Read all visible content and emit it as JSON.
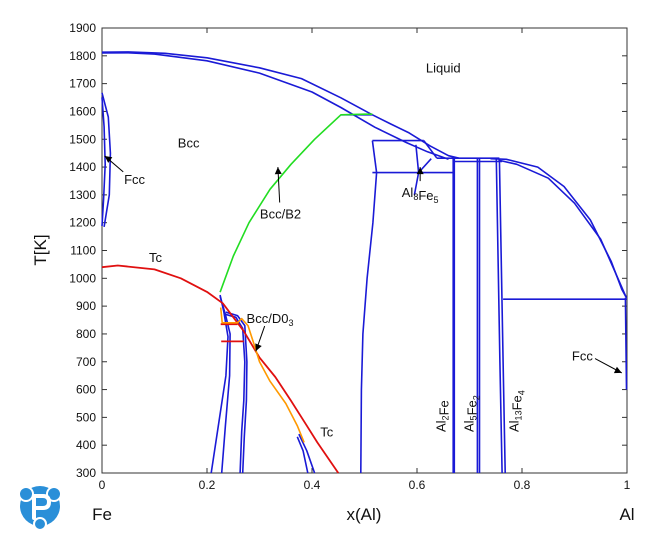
{
  "chart_data": {
    "type": "line",
    "title": "",
    "xlabel": "x(Al)",
    "ylabel": "T[K]",
    "xlim": [
      0,
      1
    ],
    "ylim": [
      300,
      1900
    ],
    "xticks": [
      "0",
      "0.2",
      "0.4",
      "0.6",
      "0.8",
      "1"
    ],
    "yticks": [
      "300",
      "400",
      "500",
      "600",
      "700",
      "800",
      "900",
      "1000",
      "1100",
      "1200",
      "1300",
      "1400",
      "1500",
      "1600",
      "1700",
      "1800",
      "1900"
    ],
    "end_labels": {
      "left": "Fe",
      "right": "Al"
    },
    "colors": {
      "phase_boundary": "#1a1ad6",
      "tc": "#e01010",
      "bcc_b2": "#22dd22",
      "bcc_d03": "#ff9900"
    },
    "annotations": [
      {
        "text": "Liquid",
        "x": 0.65,
        "y": 1740
      },
      {
        "text": "Bcc",
        "x": 0.165,
        "y": 1470
      },
      {
        "text": "Fcc",
        "x": 0.062,
        "y": 1340,
        "arrow_to": [
          0.005,
          1440
        ]
      },
      {
        "text": "Bcc/B2",
        "x": 0.34,
        "y": 1215,
        "arrow_to": [
          0.335,
          1400
        ]
      },
      {
        "text": "Tc",
        "x": 0.102,
        "y": 1058
      },
      {
        "text": "Bcc/D0",
        "sub": "3",
        "x": 0.32,
        "y": 840,
        "arrow_to": [
          0.293,
          738
        ]
      },
      {
        "text": "Tc",
        "x": 0.428,
        "y": 432
      },
      {
        "text": "Al",
        "sub": "8",
        "text2": "Fe",
        "sub2": "5",
        "x": 0.606,
        "y": 1292,
        "arrow_to": [
          0.606,
          1400
        ]
      },
      {
        "text": "Fcc",
        "x": 0.915,
        "y": 705,
        "arrow_to": [
          0.99,
          660
        ]
      }
    ],
    "vertical_labels": [
      {
        "text": "Al",
        "sub": "2",
        "text2": "Fe",
        "x": 0.647
      },
      {
        "text": "Al",
        "sub": "5",
        "text2": "Fe",
        "sub2": "2",
        "x": 0.7
      },
      {
        "text": "Al",
        "sub": "13",
        "text2": "Fe",
        "sub2": "4",
        "x": 0.786
      }
    ],
    "series": [
      {
        "style": "phase_boundary",
        "points": [
          [
            0,
            1810
          ],
          [
            0.05,
            1811
          ],
          [
            0.1,
            1806
          ],
          [
            0.2,
            1782
          ],
          [
            0.3,
            1738
          ],
          [
            0.4,
            1670
          ],
          [
            0.455,
            1614
          ],
          [
            0.52,
            1543
          ],
          [
            0.58,
            1488
          ],
          [
            0.62,
            1455
          ],
          [
            0.66,
            1428
          ]
        ]
      },
      {
        "style": "phase_boundary",
        "points": [
          [
            0,
            1813
          ],
          [
            0.05,
            1814
          ],
          [
            0.12,
            1809
          ],
          [
            0.2,
            1793
          ],
          [
            0.3,
            1757
          ],
          [
            0.38,
            1718
          ],
          [
            0.455,
            1649
          ],
          [
            0.515,
            1588
          ],
          [
            0.55,
            1555
          ],
          [
            0.585,
            1523
          ],
          [
            0.625,
            1476
          ],
          [
            0.66,
            1441
          ],
          [
            0.68,
            1432
          ]
        ]
      },
      {
        "style": "phase_boundary",
        "points": [
          [
            0,
            1667
          ],
          [
            0.012,
            1580
          ],
          [
            0.016,
            1450
          ],
          [
            0.014,
            1300
          ],
          [
            0.004,
            1185
          ]
        ]
      },
      {
        "style": "phase_boundary",
        "points": [
          [
            0,
            1650
          ],
          [
            0.004,
            1545
          ],
          [
            0.006,
            1410
          ],
          [
            0.003,
            1285
          ],
          [
            0,
            1188
          ]
        ]
      },
      {
        "style": "phase_boundary",
        "points": [
          [
            0.515,
            1588
          ],
          [
            0.455,
            1588
          ]
        ]
      },
      {
        "style": "phase_boundary",
        "points": [
          [
            0.515,
            1495
          ],
          [
            0.613,
            1495
          ]
        ]
      },
      {
        "style": "phase_boundary",
        "points": [
          [
            0.515,
            1380
          ],
          [
            0.668,
            1380
          ]
        ]
      },
      {
        "style": "phase_boundary",
        "points": [
          [
            0.515,
            1495
          ],
          [
            0.523,
            1380
          ]
        ]
      },
      {
        "style": "phase_boundary",
        "points": [
          [
            0.613,
            1495
          ],
          [
            0.638,
            1432
          ]
        ]
      },
      {
        "style": "phase_boundary",
        "points": [
          [
            0.638,
            1432
          ],
          [
            0.667,
            1432
          ]
        ]
      },
      {
        "style": "phase_boundary",
        "points": [
          [
            0.598,
            1480
          ],
          [
            0.603,
            1380
          ]
        ]
      },
      {
        "style": "phase_boundary",
        "points": [
          [
            0.603,
            1380
          ],
          [
            0.627,
            1430
          ]
        ]
      },
      {
        "style": "phase_boundary",
        "points": [
          [
            0.603,
            1380
          ],
          [
            0.6,
            1350
          ],
          [
            0.595,
            1300
          ]
        ]
      },
      {
        "style": "phase_boundary",
        "points": [
          [
            0.523,
            1380
          ],
          [
            0.516,
            1200
          ],
          [
            0.505,
            1000
          ],
          [
            0.497,
            800
          ],
          [
            0.494,
            600
          ],
          [
            0.493,
            300
          ]
        ]
      },
      {
        "style": "phase_boundary",
        "points": [
          [
            0.669,
            1435
          ],
          [
            0.669,
            300
          ]
        ]
      },
      {
        "style": "phase_boundary",
        "points": [
          [
            0.671,
            1435
          ],
          [
            0.671,
            300
          ]
        ]
      },
      {
        "style": "phase_boundary",
        "points": [
          [
            0.715,
            1430
          ],
          [
            0.715,
            300
          ]
        ]
      },
      {
        "style": "phase_boundary",
        "points": [
          [
            0.719,
            1430
          ],
          [
            0.719,
            300
          ]
        ]
      },
      {
        "style": "phase_boundary",
        "points": [
          [
            0.671,
            1420
          ],
          [
            0.762,
            1420
          ]
        ]
      },
      {
        "style": "phase_boundary",
        "points": [
          [
            0.665,
            1432
          ],
          [
            0.757,
            1432
          ]
        ]
      },
      {
        "style": "phase_boundary",
        "points": [
          [
            0.751,
            1430
          ],
          [
            0.758,
            700
          ],
          [
            0.762,
            300
          ]
        ]
      },
      {
        "style": "phase_boundary",
        "points": [
          [
            0.757,
            1430
          ],
          [
            0.764,
            700
          ],
          [
            0.768,
            300
          ]
        ]
      },
      {
        "style": "phase_boundary",
        "points": [
          [
            0.74,
            1430
          ],
          [
            0.77,
            1428
          ],
          [
            0.83,
            1400
          ],
          [
            0.88,
            1330
          ],
          [
            0.93,
            1210
          ],
          [
            0.97,
            1060
          ],
          [
            0.99,
            960
          ],
          [
            0.999,
            930
          ]
        ]
      },
      {
        "style": "phase_boundary",
        "points": [
          [
            0.755,
            1425
          ],
          [
            0.79,
            1410
          ],
          [
            0.85,
            1360
          ],
          [
            0.9,
            1270
          ],
          [
            0.95,
            1140
          ],
          [
            0.985,
            990
          ],
          [
            0.998,
            933
          ]
        ]
      },
      {
        "style": "phase_boundary",
        "points": [
          [
            0.764,
            925
          ],
          [
            1,
            925
          ]
        ]
      },
      {
        "style": "phase_boundary",
        "points": [
          [
            0.997,
            930
          ],
          [
            0.998,
            750
          ],
          [
            0.999,
            600
          ]
        ]
      },
      {
        "style": "phase_boundary",
        "points": [
          [
            0.225,
            940
          ],
          [
            0.232,
            880
          ],
          [
            0.24,
            790
          ],
          [
            0.236,
            650
          ],
          [
            0.224,
            500
          ],
          [
            0.208,
            300
          ]
        ]
      },
      {
        "style": "phase_boundary",
        "points": [
          [
            0.225,
            935
          ],
          [
            0.235,
            870
          ],
          [
            0.244,
            800
          ],
          [
            0.243,
            650
          ],
          [
            0.235,
            470
          ],
          [
            0.228,
            300
          ]
        ]
      },
      {
        "style": "phase_boundary",
        "points": [
          [
            0.232,
            872
          ],
          [
            0.255,
            860
          ],
          [
            0.268,
            820
          ],
          [
            0.272,
            700
          ],
          [
            0.27,
            560
          ],
          [
            0.266,
            450
          ],
          [
            0.263,
            300
          ]
        ]
      },
      {
        "style": "phase_boundary",
        "points": [
          [
            0.236,
            878
          ],
          [
            0.258,
            866
          ],
          [
            0.272,
            830
          ],
          [
            0.276,
            700
          ],
          [
            0.275,
            560
          ],
          [
            0.271,
            430
          ],
          [
            0.268,
            300
          ]
        ]
      },
      {
        "style": "phase_boundary",
        "points": [
          [
            0.375,
            440
          ],
          [
            0.39,
            380
          ],
          [
            0.405,
            300
          ]
        ]
      },
      {
        "style": "phase_boundary",
        "points": [
          [
            0.372,
            430
          ],
          [
            0.383,
            380
          ],
          [
            0.392,
            300
          ]
        ]
      },
      {
        "style": "tc",
        "points": [
          [
            0,
            1040
          ],
          [
            0.03,
            1046
          ],
          [
            0.1,
            1032
          ],
          [
            0.15,
            1000
          ],
          [
            0.2,
            951
          ],
          [
            0.23,
            910
          ],
          [
            0.27,
            810
          ],
          [
            0.3,
            715
          ],
          [
            0.33,
            645
          ],
          [
            0.36,
            560
          ],
          [
            0.39,
            470
          ],
          [
            0.41,
            410
          ],
          [
            0.45,
            300
          ]
        ]
      },
      {
        "style": "tc",
        "points": [
          [
            0.226,
            835
          ],
          [
            0.258,
            835
          ]
        ]
      },
      {
        "style": "tc",
        "points": [
          [
            0.227,
            773
          ],
          [
            0.27,
            773
          ]
        ]
      },
      {
        "style": "bcc_b2",
        "points": [
          [
            0.225,
            950
          ],
          [
            0.25,
            1080
          ],
          [
            0.28,
            1200
          ],
          [
            0.32,
            1320
          ],
          [
            0.36,
            1410
          ],
          [
            0.405,
            1500
          ],
          [
            0.455,
            1588
          ],
          [
            0.5,
            1590
          ],
          [
            0.515,
            1590
          ]
        ]
      },
      {
        "style": "bcc_d03",
        "points": [
          [
            0.226,
            895
          ],
          [
            0.229,
            840
          ],
          [
            0.258,
            840
          ],
          [
            0.266,
            855
          ],
          [
            0.278,
            830
          ],
          [
            0.29,
            760
          ],
          [
            0.3,
            700
          ],
          [
            0.32,
            630
          ],
          [
            0.35,
            550
          ],
          [
            0.372,
            470
          ],
          [
            0.385,
            410
          ]
        ]
      }
    ]
  }
}
